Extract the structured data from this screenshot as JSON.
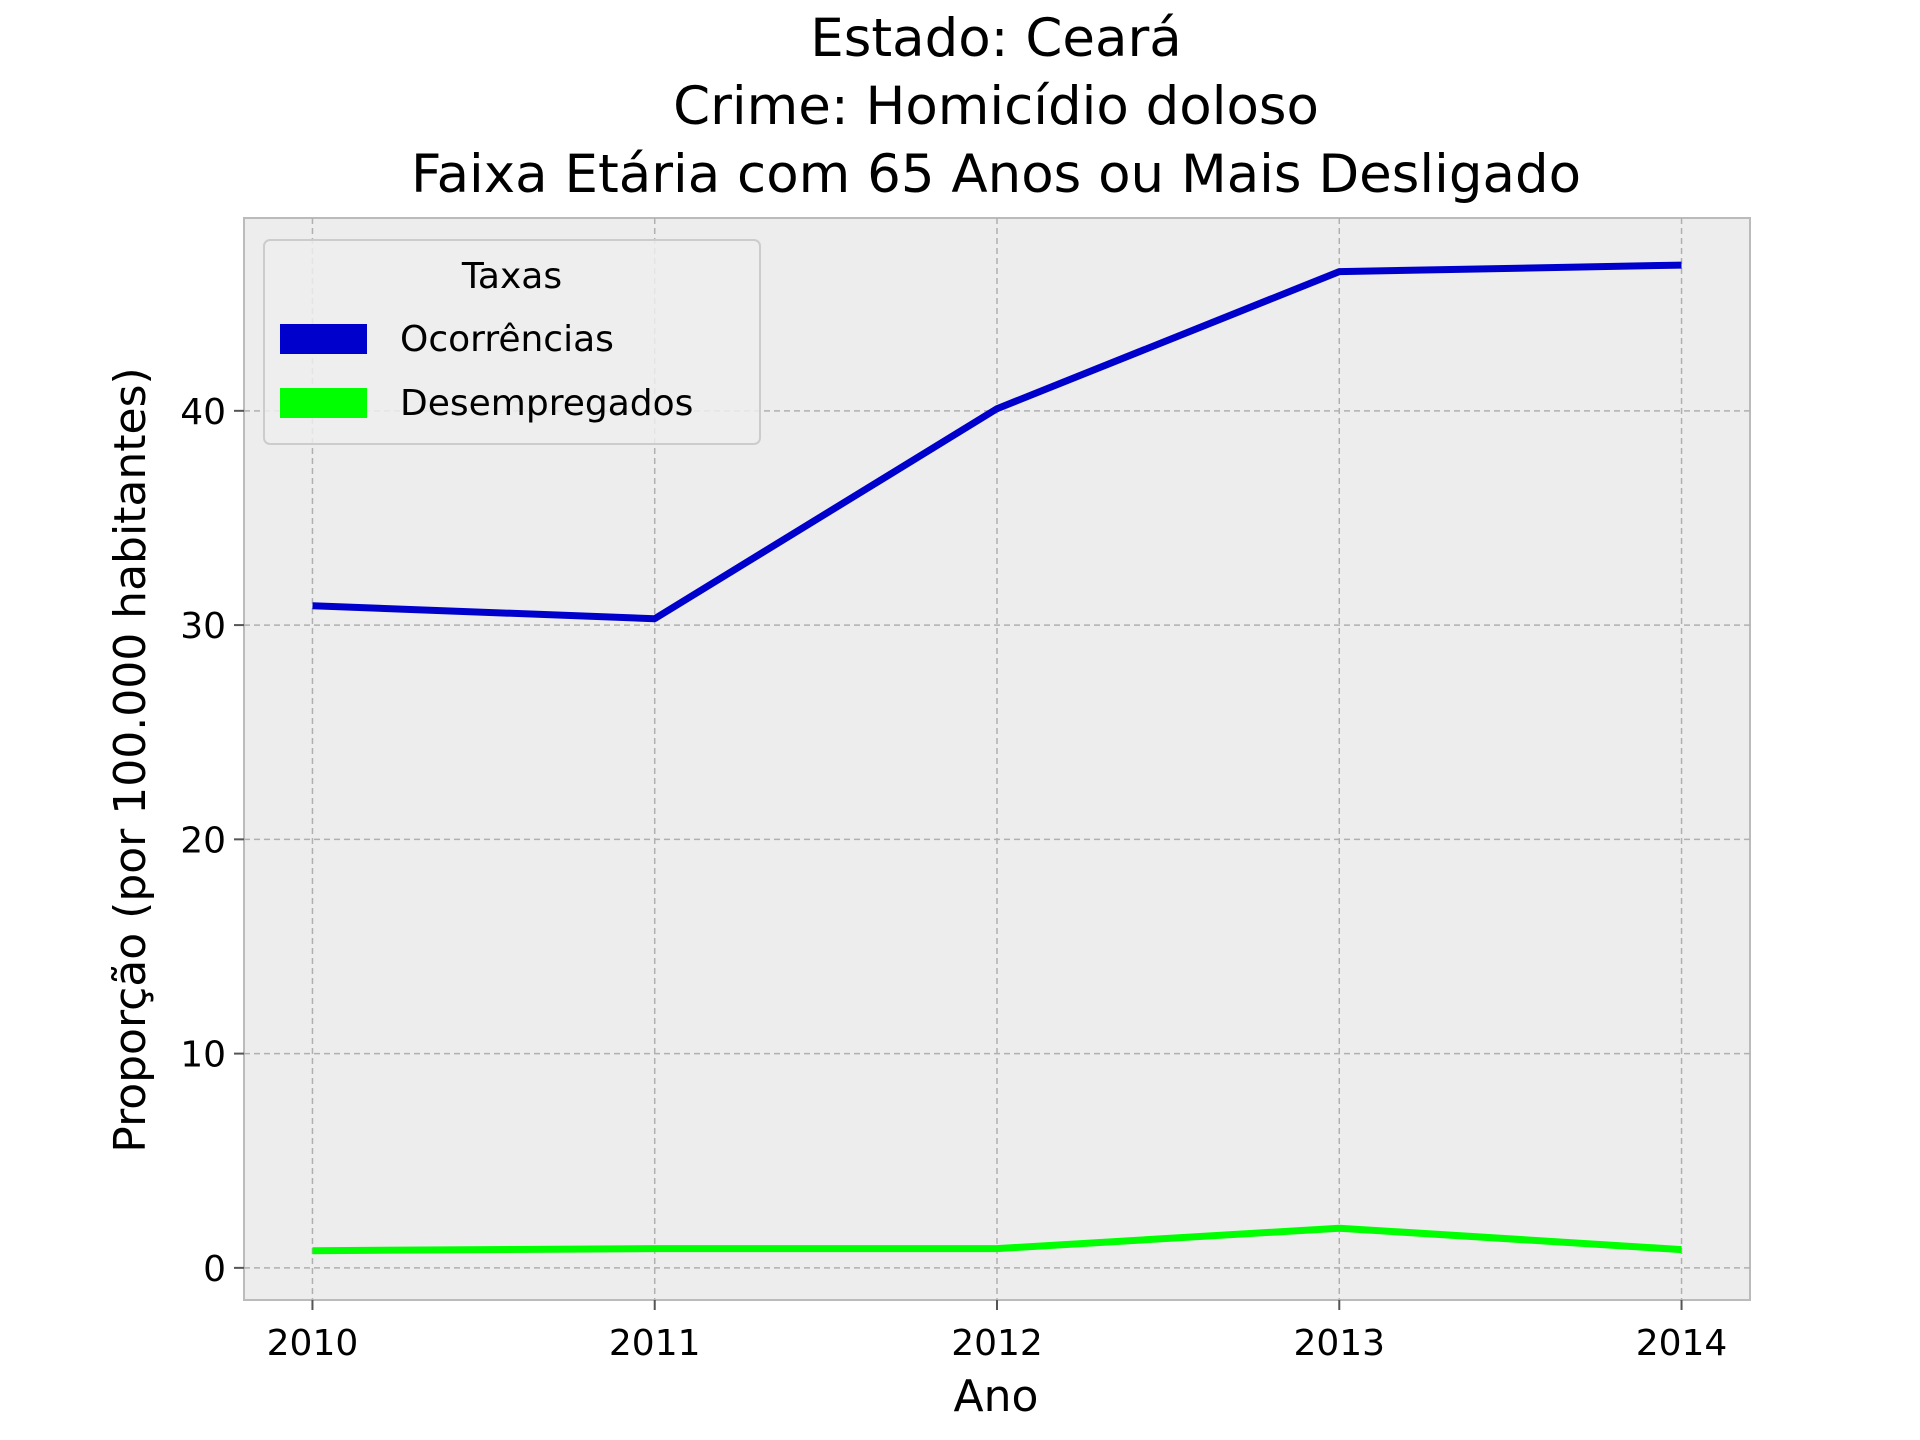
{
  "chart_data": {
    "type": "line",
    "title": [
      "Estado: Ceará",
      "Crime: Homicídio doloso",
      "Faixa Etária com 65 Anos ou Mais   Desligado"
    ],
    "xlabel": "Ano",
    "ylabel": "Proporção (por 100.000 habitantes)",
    "x": [
      2010,
      2011,
      2012,
      2013,
      2014
    ],
    "x_tick_labels": [
      "2010",
      "2011",
      "2012",
      "2013",
      "2014"
    ],
    "xlim": [
      2009.8,
      2014.2
    ],
    "y_ticks": [
      0,
      10,
      20,
      30,
      40
    ],
    "y_tick_labels": [
      "0",
      "10",
      "20",
      "30",
      "40"
    ],
    "ylim": [
      -1.5,
      49
    ],
    "grid": true,
    "legend": {
      "title": "Taxas",
      "placement": "upper-left"
    },
    "series": [
      {
        "name": "Ocorrências",
        "color": "#0000cc",
        "values": [
          30.9,
          30.3,
          40.1,
          46.5,
          46.8
        ]
      },
      {
        "name": "Desempregados",
        "color": "#00ff00",
        "values": [
          0.8,
          0.9,
          0.9,
          1.85,
          0.85
        ]
      }
    ]
  }
}
